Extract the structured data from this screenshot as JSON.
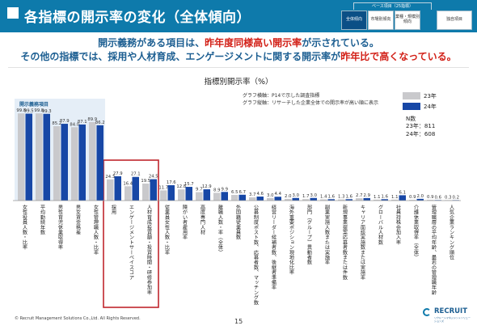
{
  "header": {
    "title": "各指標の開示率の変化（全体傾向）",
    "breadcrumb_parent": "ベース項目（25指標）",
    "breadcrumbs": [
      "全体傾向",
      "市場別傾向",
      "業種・規模別傾向",
      "独自項目"
    ]
  },
  "lead": {
    "line1_a": "開示義務がある項目は、",
    "line1_b": "昨年度同様高い開示率",
    "line1_c": "が示されている。",
    "line2_a": "その他の指標では、",
    "line2_b": "採用や人材育成、エンゲージメントに関する開示率",
    "line2_c": "が",
    "line2_d": "昨年比で高くなっている。"
  },
  "chart_data": {
    "type": "bar",
    "title": "指標別開示率（%）",
    "notes": [
      "グラフ横軸：P14で示した調査指標",
      "グラフ縦軸：リサーチした企業全体での開示率が高い順に表示"
    ],
    "group_label": "開示義務項目",
    "categories": [
      "女性役員人数・比率",
      "平均勤続年数",
      "男性育児休業取得率",
      "男女賃金格差",
      "女性管理職人数・比率",
      "採用",
      "エンゲージメントサーベイスコア",
      "人材育成投資額・投資時間・研修参加率",
      "従業員女性人数・比率",
      "障がい者雇用率",
      "高度専門人材",
      "離職人数・率（全体）",
      "外国籍従業員数",
      "公募制度ポスト数、応募者数、マッチング数",
      "経営リーダー候補者数、後継者準備率",
      "海外重要ポジション現地化比率",
      "部門（グループ）異動者数",
      "副業実施人数または実施率",
      "新規事業提案応募者数または件数",
      "キャリア面談実施数または実施率",
      "グローバル人材数",
      "社員持株会加入率",
      "介護休業取得率（全体）",
      "管理職層の平均年齢、最若の管理職年齢",
      "人気企業ランキング順位"
    ],
    "series": [
      {
        "name": "23年",
        "values": [
          99.8,
          99.8,
          85.2,
          84.0,
          89.9,
          24.3,
          16.4,
          19.5,
          11.7,
          12.8,
          9.7,
          8.9,
          6.5,
          3.7,
          3.0,
          2.0,
          1.7,
          1.4,
          1.3,
          2.7,
          1.1,
          1.1,
          0.9,
          0.9,
          0.3
        ]
      },
      {
        "name": "24年",
        "values": [
          99.5,
          99.3,
          87.9,
          87.1,
          86.2,
          27.9,
          27.1,
          24.5,
          17.6,
          15.7,
          12.9,
          9.9,
          6.7,
          4.6,
          4.4,
          3.0,
          3.0,
          1.6,
          1.6,
          2.9,
          1.6,
          6.1,
          2.0,
          0.6,
          0.2
        ]
      }
    ],
    "ylim": [
      0,
      100
    ],
    "colors": {
      "y23": "#c9c9cc",
      "y24": "#1747a6"
    },
    "highlight": {
      "from_index": 5,
      "to_index": 7,
      "color": "#c0262d"
    },
    "group_highlight": {
      "from_index": 0,
      "to_index": 4,
      "color": "#cfe0f0"
    },
    "n_label": "N数",
    "n_23": "23年：811",
    "n_24": "24年：608"
  },
  "footer": {
    "copyright": "© Recruit Management Solutions Co.,Ltd. All Rights Reserved.",
    "page": "15",
    "logo_name": "RECRUIT",
    "logo_sub": "リクルートマネジメントソリューションズ"
  }
}
